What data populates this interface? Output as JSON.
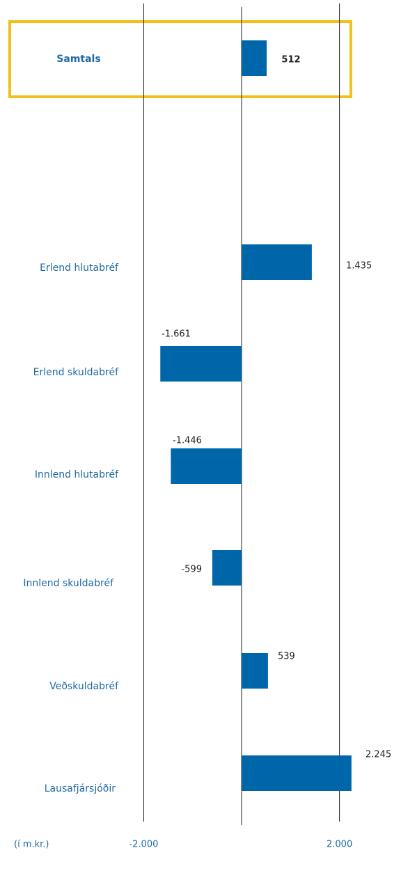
{
  "chart_data": {
    "type": "bar",
    "orientation": "horizontal",
    "categories": [
      "Samtals",
      "Erlend hlutabréf",
      "Erlend skuldabréf",
      "Innlend hlutabréf",
      "Innlend skuldabréf",
      "Veðskuldabréf",
      "Lausafjársjóðir"
    ],
    "values": [
      512,
      1435,
      -1661,
      -1446,
      -599,
      539,
      2245
    ],
    "value_labels": [
      "512",
      "1.435",
      "-1.661",
      "-1.446",
      "-599",
      "539",
      "2.245"
    ],
    "color": "#0066aa",
    "xlim": [
      -2100,
      2300
    ],
    "xticks": [
      {
        "value": -2000,
        "label": "-2.000"
      },
      {
        "value": 2000,
        "label": "2.000"
      }
    ],
    "xlabel": "(í m.kr.)",
    "grid": true
  }
}
